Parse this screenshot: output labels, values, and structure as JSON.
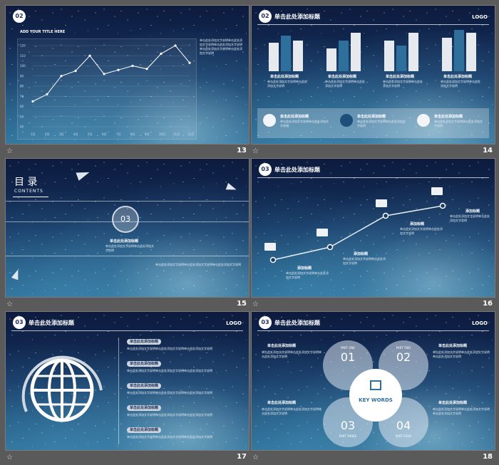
{
  "slides": {
    "s13": {
      "num": "13",
      "subtitle": "ADD YOUR TITLE HERE",
      "ytick_values": [
        "120",
        "110",
        "100",
        "90",
        "80",
        "70",
        "60",
        "50",
        "40"
      ],
      "xticks": [
        "1月",
        "2月",
        "3月",
        "4月",
        "5月",
        "6月",
        "7月",
        "8月",
        "9月",
        "10月",
        "11月",
        "12月"
      ],
      "series": [
        65,
        72,
        90,
        95,
        110,
        92,
        96,
        100,
        97,
        112,
        120,
        103
      ],
      "text": "单击此处添加文字说明单击此处添加文字说明单击此处添加文字说明单击此处添加文字说明单击此处添加文字说明"
    },
    "s14": {
      "num": "14",
      "title": "单击此处添加标题",
      "logo": "LOGO",
      "groups": [
        {
          "label": "单击此处添加标题",
          "bars": [
            55,
            70,
            60
          ]
        },
        {
          "label": "单击此处添加标题",
          "bars": [
            45,
            60,
            75
          ]
        },
        {
          "label": "单击此处添加标题",
          "bars": [
            60,
            50,
            75
          ]
        },
        {
          "label": "单击此处添加标题",
          "bars": [
            65,
            80,
            75
          ]
        }
      ],
      "text": "单击此处添加文字说明单击此处添加文字说明",
      "footer_items": [
        {
          "label": "单击此处添加标题",
          "icon": "chart-icon"
        },
        {
          "label": "单击此处添加标题",
          "icon": "truck-icon"
        },
        {
          "label": "单击此处添加标题",
          "icon": "plant-icon"
        }
      ]
    },
    "s15": {
      "num": "15",
      "heading": "目 录",
      "sub": "CONTENTS",
      "circle": "03",
      "label": "单击此处添加标题",
      "text": "单击此处添加文字说明单击此处添加文字说明",
      "body": "单击此处添加文字说明单击此处添加文字说明单击此处添加文字说明"
    },
    "s16": {
      "num": "16",
      "title": "单击此处添加标题",
      "labels": [
        "添加标题",
        "添加标题",
        "添加标题",
        "添加标题"
      ],
      "text": "单击此处添加文字说明单击此处添加文字说明"
    },
    "s17": {
      "num": "17",
      "title": "单击此处添加标题",
      "logo": "LOGO",
      "pills": [
        "单击此处添加标题",
        "单击此处添加标题",
        "单击此处添加标题",
        "单击此处添加标题",
        "单击此处添加标题"
      ],
      "text": "单击此处添加文字说明单击此处添加文字说明单击此处添加文字说明"
    },
    "s18": {
      "num": "18",
      "title": "单击此处添加标题",
      "logo": "LOGO",
      "parts": [
        {
          "num": "01",
          "label": "PART ONE"
        },
        {
          "num": "02",
          "label": "PART TWO"
        },
        {
          "num": "03",
          "label": "PART THREE"
        },
        {
          "num": "04",
          "label": "PART FOUR"
        }
      ],
      "center": "KEY WORDS",
      "heads": [
        "单击此处添加标题",
        "单击此处添加标题",
        "单击此处添加标题",
        "单击此处添加标题"
      ],
      "text": "单击此处添加文字说明单击此处添加文字说明单击此处添加文字说明"
    }
  },
  "badge": "02",
  "badge3": "03",
  "star_glyph": "☆",
  "colors": {
    "bar_light": "#e6eaef",
    "bar_mid": "#2f6f9c",
    "bar_dark": "#1d4f7a",
    "accent": "#ffffff"
  }
}
